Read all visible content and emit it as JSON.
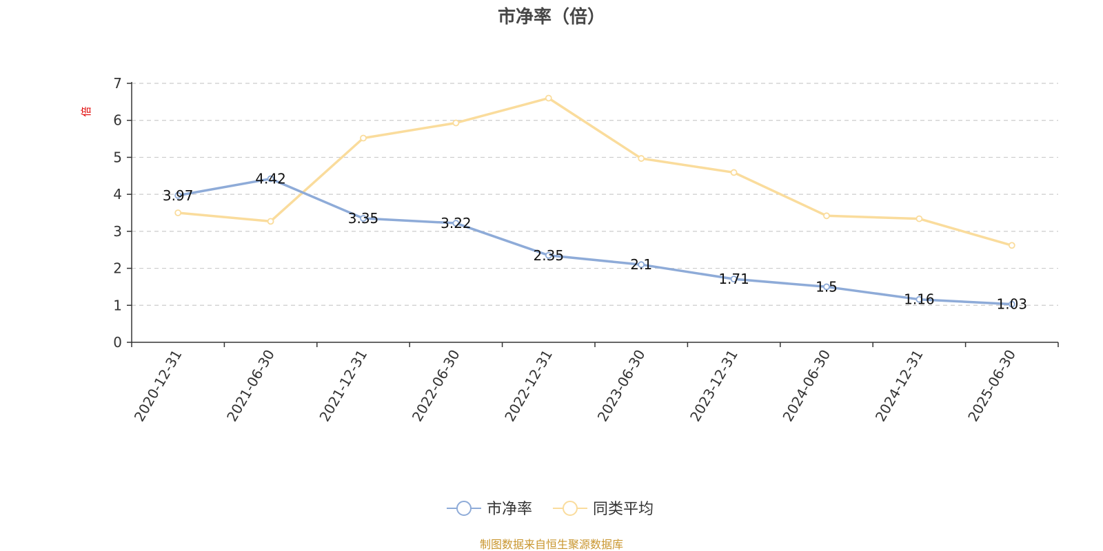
{
  "chart_data": {
    "type": "line",
    "title": "市净率（倍）",
    "ylabel": "倍",
    "xlabel": "",
    "categories": [
      "2020-12-31",
      "2021-06-30",
      "2021-12-31",
      "2022-06-30",
      "2022-12-31",
      "2023-06-30",
      "2023-12-31",
      "2024-06-30",
      "2024-12-31",
      "2025-06-30"
    ],
    "series": [
      {
        "name": "市净率",
        "color": "#8eabd8",
        "values": [
          3.97,
          4.42,
          3.35,
          3.22,
          2.35,
          2.1,
          1.71,
          1.5,
          1.16,
          1.03
        ],
        "data_labels": [
          "3.97",
          "4.42",
          "3.35",
          "3.22",
          "2.35",
          "2.1",
          "1.71",
          "1.5",
          "1.16",
          "1.03"
        ]
      },
      {
        "name": "同类平均",
        "color": "#fadc9c",
        "values": [
          3.5,
          3.27,
          5.52,
          5.93,
          6.6,
          4.97,
          4.59,
          3.42,
          3.34,
          2.62
        ]
      }
    ],
    "yticks": [
      "0",
      "1",
      "2",
      "3",
      "4",
      "5",
      "6",
      "7"
    ],
    "ylim": [
      0,
      7
    ],
    "grid": true,
    "legend_position": "bottom-center"
  },
  "footer": {
    "source": "制图数据来自恒生聚源数据库"
  }
}
